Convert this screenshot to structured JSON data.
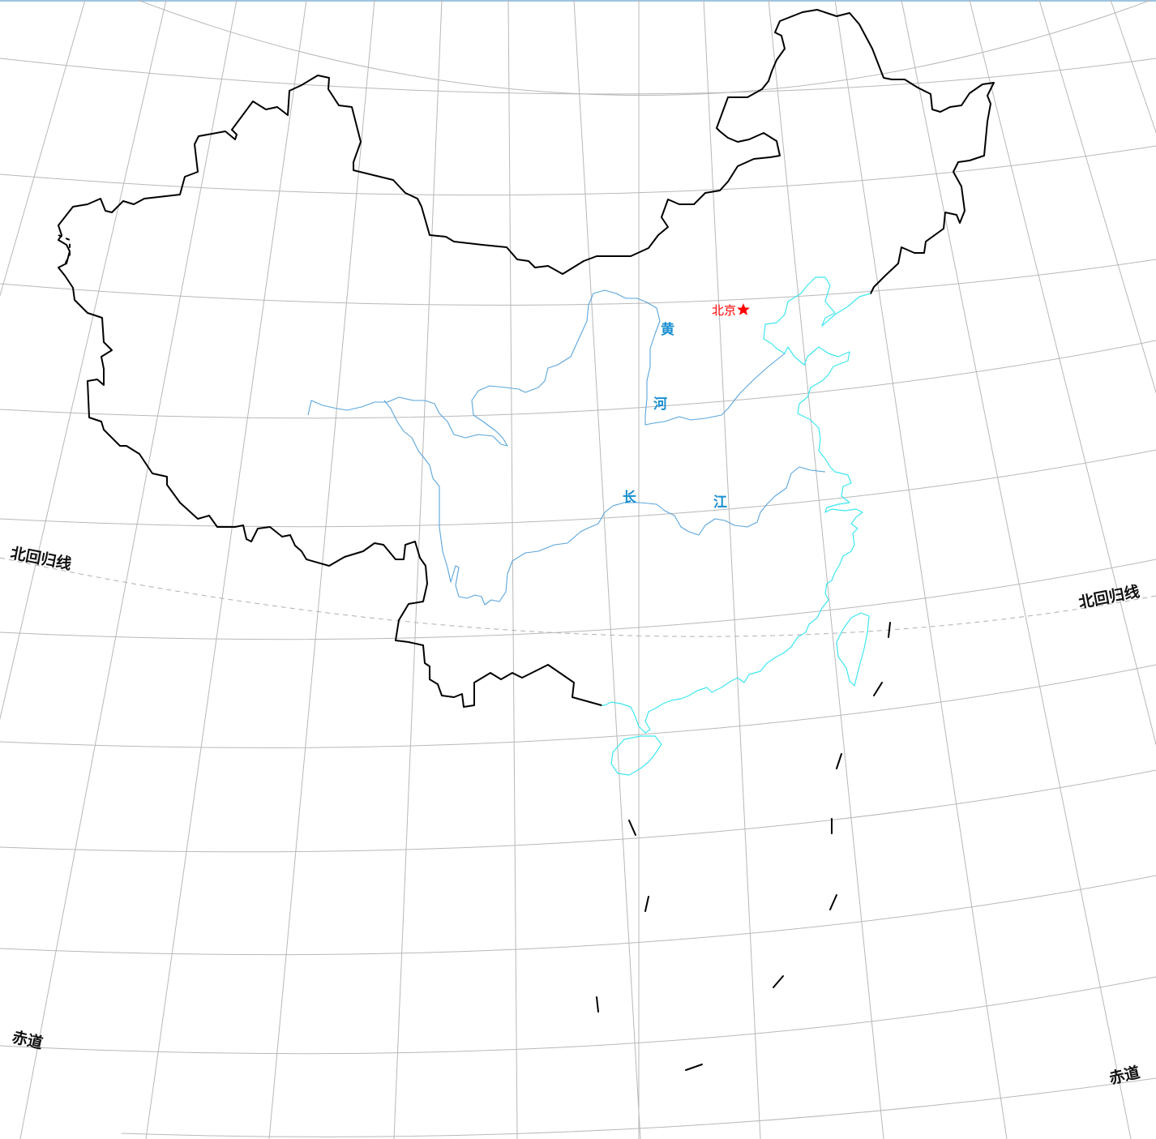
{
  "map": {
    "labels": {
      "tropic_left": "北回归线",
      "tropic_right": "北回归线",
      "equator_left": "赤道",
      "equator_right": "赤道",
      "capital": "北京",
      "capital_marker_icon": "red-star-icon",
      "yellow_river_1": "黄",
      "yellow_river_2": "河",
      "yangtze_1": "长",
      "yangtze_2": "江"
    },
    "colors": {
      "border": "#000000",
      "coastline": "#3ee6f0",
      "river": "#5aa5dc",
      "river_label": "#1a8fd0",
      "capital": "#ff0000",
      "graticule": "#b8b8b8",
      "tropic_line": "#b0b0b0"
    }
  }
}
